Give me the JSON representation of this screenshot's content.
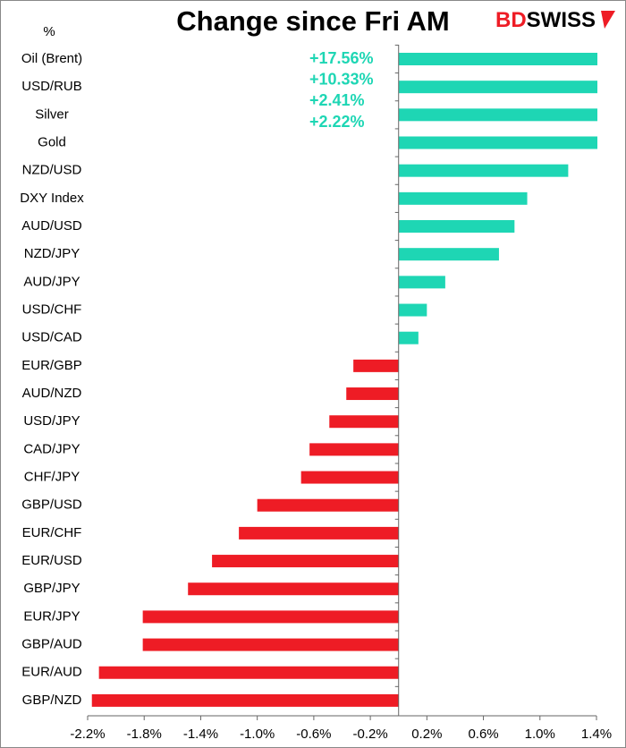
{
  "chart_data": {
    "type": "hbar",
    "title": "Change since Fri AM",
    "ylabel": "%",
    "logo": [
      "BD",
      "SWISS"
    ],
    "categories": [
      "Oil (Brent)",
      "USD/RUB",
      "Silver",
      "Gold",
      "NZD/USD",
      "DXY Index",
      "AUD/USD",
      "NZD/JPY",
      "AUD/JPY",
      "USD/CHF",
      "USD/CAD",
      "EUR/GBP",
      "AUD/NZD",
      "USD/JPY",
      "CAD/JPY",
      "CHF/JPY",
      "GBP/USD",
      "EUR/CHF",
      "EUR/USD",
      "GBP/JPY",
      "EUR/JPY",
      "GBP/AUD",
      "EUR/AUD",
      "GBP/NZD"
    ],
    "values": [
      17.56,
      10.33,
      2.41,
      2.22,
      1.2,
      0.91,
      0.82,
      0.71,
      0.33,
      0.2,
      0.14,
      -0.32,
      -0.37,
      -0.49,
      -0.63,
      -0.69,
      -1.0,
      -1.13,
      -1.32,
      -1.49,
      -1.81,
      -1.81,
      -2.12,
      -2.17
    ],
    "value_labels": [
      "+17.56%",
      "+10.33%",
      "+2.41%",
      "+2.22%",
      null,
      null,
      null,
      null,
      null,
      null,
      null,
      null,
      null,
      null,
      null,
      null,
      null,
      null,
      null,
      null,
      null,
      null,
      null,
      null
    ],
    "color_positive": "#1ed6b4",
    "color_negative": "#ee1c25",
    "xlim": [
      -2.2,
      1.4
    ],
    "xticks": [
      {
        "value": -2.2,
        "label": "-2.2%"
      },
      {
        "value": -1.8,
        "label": "-1.8%"
      },
      {
        "value": -1.4,
        "label": "-1.4%"
      },
      {
        "value": -1.0,
        "label": "-1.0%"
      },
      {
        "value": -0.6,
        "label": "-0.6%"
      },
      {
        "value": -0.2,
        "label": "-0.2%"
      },
      {
        "value": 0.2,
        "label": "0.2%"
      },
      {
        "value": 0.6,
        "label": "0.6%"
      },
      {
        "value": 1.0,
        "label": "1.0%"
      },
      {
        "value": 1.4,
        "label": "1.4%"
      }
    ]
  }
}
